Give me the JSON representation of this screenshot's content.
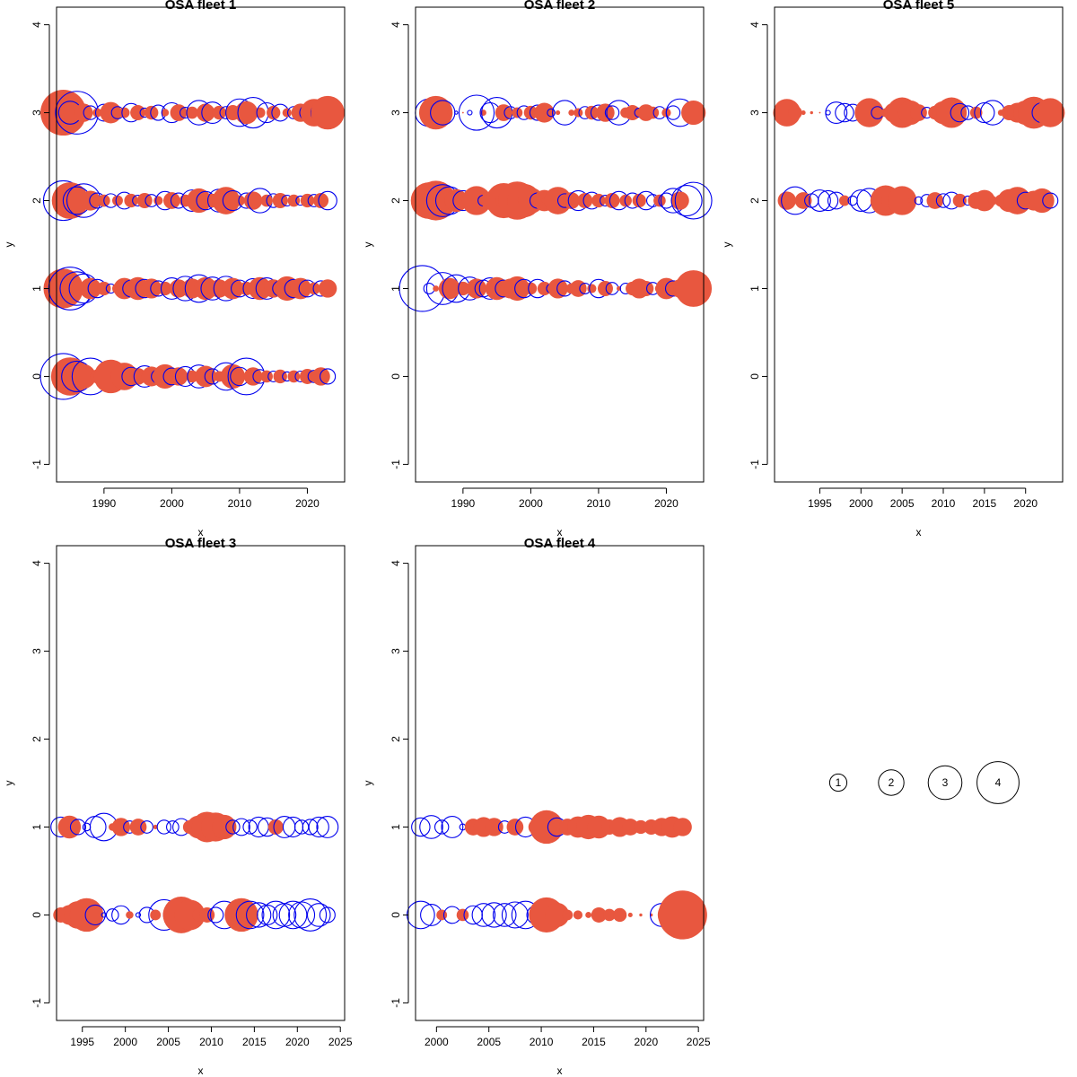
{
  "colors": {
    "positive": "#E8573F",
    "negative": "#0000EE",
    "axis": "#000000"
  },
  "chart_data": [
    {
      "type": "scatter",
      "title": "OSA fleet 1",
      "xlabel": "x",
      "ylabel": "y",
      "xlim": [
        1983,
        2025.5
      ],
      "ylim": [
        -1.2,
        4.2
      ],
      "xticks": [
        "1990",
        "2000",
        "2010",
        "2020"
      ],
      "yticks": [
        "-1",
        "0",
        "1",
        "2",
        "3",
        "4"
      ],
      "rows": [
        {
          "y": 3,
          "start": 1984,
          "end": 2023,
          "pattern": [
            3.0,
            -1.5,
            -2.8,
            1.2,
            -0.9,
            0.6,
            -1.1,
            1.4,
            -0.8,
            0.7,
            -1.2,
            1.0,
            -0.6,
            0.9,
            -1.0,
            0.5,
            -1.3,
            1.1,
            -0.7,
            0.8,
            -1.6,
            1.2,
            -1.4,
            0.9,
            -0.8,
            1.0,
            -1.8,
            1.5,
            -2.0,
            0.7,
            -1.3,
            0.9,
            -1.1,
            0.6,
            -0.8,
            1.2,
            -1.0,
            1.8,
            -1.3,
            2.2
          ]
        },
        {
          "y": 2,
          "start": 1984,
          "end": 2023,
          "pattern": [
            -2.6,
            2.4,
            -1.8,
            -2.2,
            1.3,
            -1.0,
            0.8,
            -0.9,
            0.7,
            -1.1,
            0.9,
            -0.7,
            1.0,
            -0.8,
            0.6,
            -1.2,
            1.1,
            -1.0,
            0.8,
            -1.4,
            1.6,
            -1.2,
            0.9,
            -1.5,
            1.8,
            -1.3,
            0.7,
            -1.0,
            1.2,
            -1.6,
            0.8,
            -0.9,
            1.0,
            -0.7,
            0.8,
            -0.6,
            0.9,
            -0.8,
            1.0,
            -1.2
          ]
        },
        {
          "y": 1,
          "start": 1984,
          "end": 2023,
          "pattern": [
            2.6,
            -2.8,
            -2.2,
            -1.9,
            1.4,
            -1.2,
            0.9,
            -0.6,
            0.7,
            1.4,
            -1.1,
            1.5,
            -1.2,
            1.3,
            -1.0,
            0.9,
            -1.4,
            1.2,
            -1.6,
            1.3,
            -1.8,
            1.5,
            -1.5,
            1.2,
            -1.6,
            1.4,
            -1.1,
            0.9,
            -1.3,
            1.5,
            -1.4,
            1.2,
            -1.0,
            1.6,
            -1.2,
            1.4,
            -1.1,
            0.8,
            -1.0,
            1.2
          ]
        },
        {
          "y": 0,
          "start": 1984,
          "end": 2023,
          "pattern": [
            -3.0,
            2.5,
            -2.0,
            1.6,
            -2.4,
            0.9,
            -1.0,
            2.2,
            -0.6,
            1.8,
            -1.2,
            1.1,
            -1.4,
            1.3,
            -0.9,
            1.6,
            -1.1,
            1.2,
            -1.3,
            0.8,
            -1.5,
            1.4,
            -1.0,
            0.7,
            -1.8,
            1.6,
            -1.2,
            -2.4,
            1.2,
            -0.9,
            0.8,
            -0.7,
            0.9,
            -0.6,
            0.8,
            -0.7,
            1.0,
            -0.8,
            1.2,
            -1.0
          ]
        }
      ]
    },
    {
      "type": "scatter",
      "title": "OSA fleet 2",
      "xlabel": "x",
      "ylabel": "y",
      "xlim": [
        1983,
        2025.5
      ],
      "ylim": [
        -1.2,
        4.2
      ],
      "xticks": [
        "1990",
        "2000",
        "2010",
        "2020"
      ],
      "yticks": [
        "-1",
        "0",
        "1",
        "2",
        "3",
        "4"
      ],
      "rows": [
        {
          "y": 3,
          "start": 1985,
          "end": 2024,
          "pattern": [
            -1.8,
            2.2,
            -1.6,
            0.3,
            -0.2,
            0.1,
            -0.3,
            -2.3,
            0.4,
            -1.3,
            -2.0,
            1.1,
            -0.8,
            0.7,
            -0.9,
            0.9,
            -1.0,
            1.3,
            -0.5,
            0.3,
            -1.6,
            0.4,
            0.6,
            -0.8,
            0.9,
            -1.0,
            1.2,
            -0.9,
            -1.6,
            0.7,
            1.0,
            -0.6,
            1.1,
            0.8,
            -0.8,
            0.6,
            -0.9,
            -1.8,
            0.4,
            1.6
          ]
        },
        {
          "y": 2,
          "start": 1985,
          "end": 2024,
          "pattern": [
            2.4,
            2.6,
            -2.1,
            -1.8,
            1.5,
            -1.3,
            -0.8,
            1.9,
            -0.7,
            1.2,
            -1.0,
            2.3,
            1.9,
            2.5,
            2.2,
            1.7,
            -1.0,
            1.4,
            1.2,
            1.8,
            -0.9,
            1.1,
            -1.3,
            1.0,
            -1.1,
            0.9,
            -0.7,
            1.0,
            -1.2,
            0.8,
            -1.0,
            0.9,
            -1.2,
            -0.8,
            0.8,
            -1.0,
            -1.6,
            1.2,
            -2.0,
            -2.4
          ]
        },
        {
          "y": 1,
          "start": 1984,
          "end": 2024,
          "pattern": [
            -3.0,
            -0.7,
            0.4,
            -2.1,
            1.4,
            -1.8,
            0.9,
            -1.5,
            1.3,
            -1.1,
            -1.4,
            1.5,
            -1.1,
            1.3,
            1.6,
            -1.2,
            0.8,
            -1.2,
            0.9,
            -0.6,
            1.3,
            -1.0,
            0.7,
            1.1,
            -0.7,
            0.6,
            -1.2,
            1.0,
            -0.8,
            0.3,
            -0.7,
            0.9,
            1.3,
            1.0,
            -0.8,
            0.6,
            1.4,
            -1.0,
            1.2,
            1.7,
            2.4
          ]
        }
      ]
    },
    {
      "type": "scatter",
      "title": "OSA fleet 5",
      "xlabel": "x",
      "ylabel": "y",
      "xlim": [
        1989.5,
        2024.5
      ],
      "ylim": [
        -1.2,
        4.2
      ],
      "xticks": [
        "1995",
        "2000",
        "2005",
        "2010",
        "2015",
        "2020"
      ],
      "yticks": [
        "-1",
        "0",
        "1",
        "2",
        "3",
        "4"
      ],
      "rows": [
        {
          "y": 3,
          "start": 1991,
          "end": 2023,
          "pattern": [
            1.8,
            0.9,
            0.3,
            0.2,
            0.1,
            -0.3,
            -1.4,
            -1.2,
            -1.1,
            0.8,
            1.9,
            -0.8,
            0.6,
            1.3,
            2.0,
            1.6,
            1.1,
            -0.7,
            0.9,
            1.5,
            2.0,
            -1.2,
            -0.9,
            0.8,
            -1.3,
            -1.6,
            0.4,
            1.0,
            1.3,
            1.6,
            2.1,
            -1.3,
            1.9
          ]
        },
        {
          "y": 2,
          "start": 1991,
          "end": 2023,
          "pattern": [
            1.2,
            -1.8,
            1.1,
            -0.9,
            -1.4,
            -1.3,
            -1.1,
            0.7,
            -0.6,
            -1.4,
            -1.6,
            0.8,
            2.0,
            1.6,
            1.9,
            0.3,
            -0.5,
            -0.8,
            1.1,
            -0.9,
            -1.1,
            0.9,
            -0.6,
            1.1,
            1.4,
            0.6,
            0.8,
            1.5,
            1.8,
            -1.1,
            1.3,
            1.6,
            -1.0
          ]
        }
      ]
    },
    {
      "type": "scatter",
      "title": "OSA fleet 3",
      "xlabel": "x",
      "ylabel": "y",
      "xlim": [
        1992,
        2025.5
      ],
      "ylim": [
        -1.2,
        4.2
      ],
      "xticks": [
        "1995",
        "2000",
        "2005",
        "2010",
        "2015",
        "2020",
        "2025"
      ],
      "yticks": [
        "-1",
        "0",
        "1",
        "2",
        "3",
        "4"
      ],
      "rows": [
        {
          "y": 1,
          "start": 1992.5,
          "end": 2023.5,
          "pattern": [
            -1.3,
            1.5,
            -1.0,
            -0.5,
            -1.4,
            -1.8,
            0.5,
            1.2,
            -0.8,
            1.1,
            -0.8,
            0.3,
            -0.9,
            -0.8,
            -1.1,
            0.9,
            1.5,
            2.0,
            1.9,
            1.6,
            -0.9,
            -1.1,
            -0.9,
            -1.3,
            -1.2,
            1.0,
            -1.4,
            -1.3,
            -0.9,
            -1.0,
            -1.3,
            -1.4
          ]
        },
        {
          "y": 0,
          "start": 1992.5,
          "end": 2023.5,
          "pattern": [
            1.0,
            1.3,
            1.8,
            2.2,
            -1.3,
            -0.3,
            -0.8,
            -1.2,
            0.5,
            -0.3,
            -1.0,
            0.7,
            -2.0,
            -1.2,
            2.4,
            2.0,
            0.8,
            1.0,
            -1.0,
            -1.8,
            0.9,
            2.2,
            -1.8,
            -1.6,
            -1.3,
            -1.8,
            -1.5,
            -1.8,
            -1.7,
            -2.1,
            -1.5,
            -1.0
          ]
        }
      ]
    },
    {
      "type": "scatter",
      "title": "OSA fleet 4",
      "xlabel": "x",
      "ylabel": "y",
      "xlim": [
        1998,
        2025.5
      ],
      "ylim": [
        -1.2,
        4.2
      ],
      "xticks": [
        "2000",
        "2005",
        "2010",
        "2015",
        "2020",
        "2025"
      ],
      "yticks": [
        "-1",
        "0",
        "1",
        "2",
        "3",
        "4"
      ],
      "rows": [
        {
          "y": 1,
          "start": 1998.5,
          "end": 2023.5,
          "pattern": [
            -1.2,
            -1.5,
            -0.9,
            -1.4,
            -0.4,
            1.1,
            1.3,
            1.2,
            -0.8,
            1.1,
            -1.3,
            1.0,
            2.2,
            -1.2,
            1.1,
            1.4,
            1.6,
            1.5,
            1.0,
            1.3,
            1.1,
            0.9,
            1.0,
            1.2,
            1.4,
            1.2
          ]
        },
        {
          "y": 0,
          "start": 1998.5,
          "end": 2023.5,
          "pattern": [
            -1.8,
            -1.4,
            0.7,
            -1.1,
            0.8,
            -1.2,
            -1.5,
            -1.6,
            -1.5,
            -1.7,
            -1.8,
            -1.2,
            2.3,
            1.6,
            0.7,
            0.6,
            0.4,
            1.0,
            0.8,
            0.9,
            0.3,
            0.2,
            0.2,
            -1.5,
            1.9,
            3.2
          ]
        }
      ]
    }
  ],
  "legend": {
    "labels": [
      "1",
      "2",
      "3",
      "4"
    ],
    "values": [
      1,
      2,
      3,
      4
    ]
  }
}
